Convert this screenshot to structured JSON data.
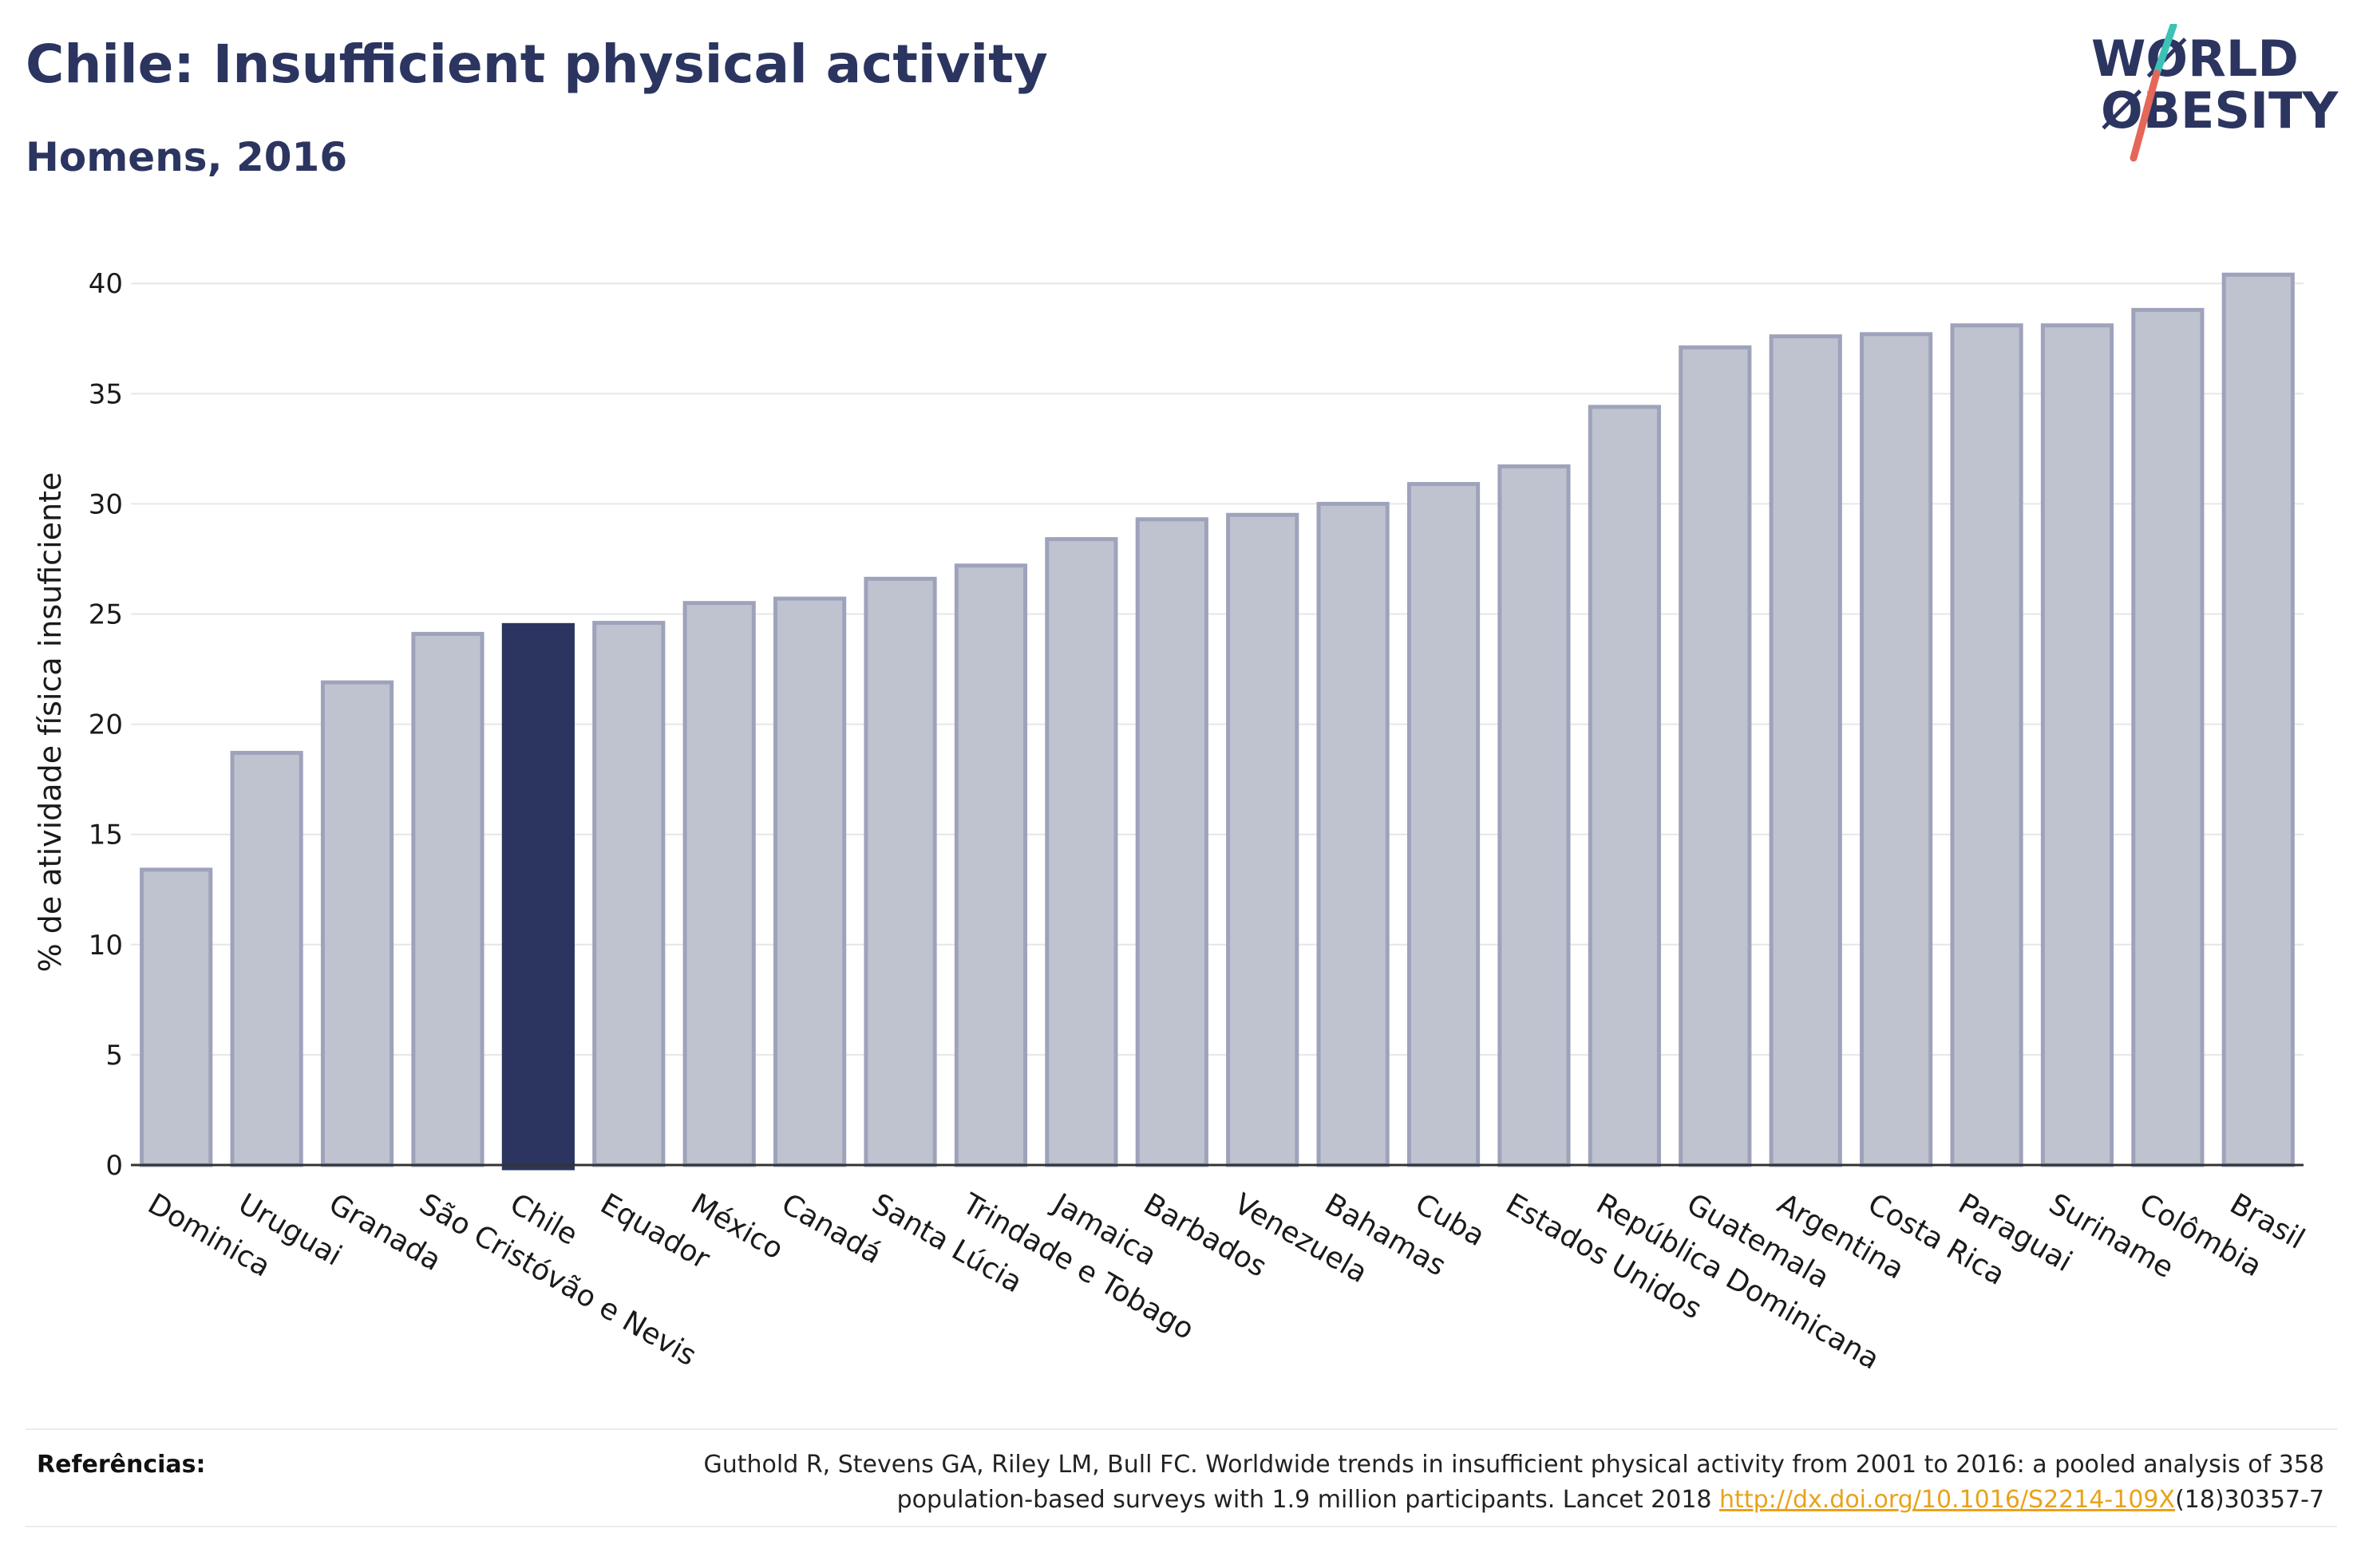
{
  "header": {
    "title": "Chile: Insufficient physical activity",
    "subtitle": "Homens, 2016"
  },
  "logo": {
    "line1": "WØRLD",
    "line2": "ØBESITY",
    "text_color": "#2b3560",
    "slash_colors": [
      "#3cc1b7",
      "#e4675a"
    ]
  },
  "chart_data": {
    "type": "bar",
    "title": "Chile: Insufficient physical activity",
    "subtitle": "Homens, 2016",
    "ylabel": "% de atividade física insuficiente",
    "xlabel": "",
    "ylim": [
      0,
      42
    ],
    "yticks": [
      0,
      5,
      10,
      15,
      20,
      25,
      30,
      35,
      40
    ],
    "grid": true,
    "highlight_category": "Chile",
    "colors": {
      "bar": "#bfc3d0",
      "bar_border": "#9ea3bb",
      "highlight": "#2b3560"
    },
    "categories": [
      "Dominica",
      "Uruguai",
      "Granada",
      "São Cristóvão e Nevis",
      "Chile",
      "Equador",
      "México",
      "Canadá",
      "Santa Lúcia",
      "Trindade e Tobago",
      "Jamaica",
      "Barbados",
      "Venezuela",
      "Bahamas",
      "Cuba",
      "Estados Unidos",
      "República Dominicana",
      "Guatemala",
      "Argentina",
      "Costa Rica",
      "Paraguai",
      "Suriname",
      "Colômbia",
      "Brasil"
    ],
    "values": [
      13.4,
      18.7,
      21.9,
      24.1,
      24.5,
      24.6,
      25.5,
      25.7,
      26.6,
      27.2,
      28.4,
      29.3,
      29.5,
      30.0,
      30.9,
      31.7,
      34.4,
      37.1,
      37.6,
      37.7,
      38.1,
      38.1,
      38.8,
      40.4
    ]
  },
  "footer": {
    "ref_label": "Referências:",
    "ref_text_line1": "Guthold R, Stevens GA, Riley LM, Bull FC. Worldwide trends in insufficient physical activity from 2001 to 2016: a pooled analysis of 358",
    "ref_text_line2_pre": "population-based surveys with 1.9 million participants. Lancet 2018 ",
    "ref_link": "http://dx.doi.org/10.1016/S2214-109X",
    "ref_text_line2_post": "(18)30357-7"
  }
}
